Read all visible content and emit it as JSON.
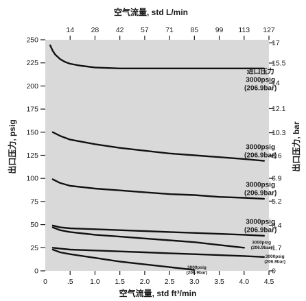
{
  "chart_data": {
    "type": "line",
    "x_axis": {
      "title": "空气流量, std ft³/min",
      "min": 0,
      "max": 4.5,
      "ticks": [
        {
          "v": 0,
          "label": "0"
        },
        {
          "v": 0.5,
          "label": ".5"
        },
        {
          "v": 1.0,
          "label": "1.0"
        },
        {
          "v": 1.5,
          "label": "1.5"
        },
        {
          "v": 2.0,
          "label": "2.0"
        },
        {
          "v": 2.5,
          "label": "2.5"
        },
        {
          "v": 3.0,
          "label": "3.0"
        },
        {
          "v": 3.5,
          "label": "3.5"
        },
        {
          "v": 4.0,
          "label": "4.0"
        },
        {
          "v": 4.5,
          "label": "4.5"
        }
      ]
    },
    "x2_axis": {
      "title": "空气流量, std L/min",
      "ticks": [
        {
          "v": 0.5,
          "label": "14"
        },
        {
          "v": 1.0,
          "label": "28"
        },
        {
          "v": 1.5,
          "label": "42"
        },
        {
          "v": 2.0,
          "label": "57"
        },
        {
          "v": 2.5,
          "label": "71"
        },
        {
          "v": 3.0,
          "label": "85"
        },
        {
          "v": 3.5,
          "label": "99"
        },
        {
          "v": 4.0,
          "label": "113"
        },
        {
          "v": 4.5,
          "label": "127"
        }
      ]
    },
    "y_axis": {
      "title": "出口压力, psig",
      "min": 0,
      "max": 250,
      "ticks": [
        {
          "v": 0,
          "label": "0"
        },
        {
          "v": 25,
          "label": "25"
        },
        {
          "v": 50,
          "label": "50"
        },
        {
          "v": 75,
          "label": "75"
        },
        {
          "v": 100,
          "label": "100"
        },
        {
          "v": 125,
          "label": "125"
        },
        {
          "v": 150,
          "label": "150"
        },
        {
          "v": 175,
          "label": "175"
        },
        {
          "v": 200,
          "label": "200"
        },
        {
          "v": 225,
          "label": "225"
        },
        {
          "v": 250,
          "label": "250"
        }
      ]
    },
    "y2_axis": {
      "title": "出口压力, bar",
      "ticks": [
        {
          "v": 0,
          "label": "0"
        },
        {
          "v": 24.7,
          "label": "1.7"
        },
        {
          "v": 49.3,
          "label": "3.4"
        },
        {
          "v": 75.4,
          "label": "5.2"
        },
        {
          "v": 100.1,
          "label": "6.9"
        },
        {
          "v": 124.7,
          "label": "8.6"
        },
        {
          "v": 149.4,
          "label": "10.3"
        },
        {
          "v": 175.5,
          "label": "12.1"
        },
        {
          "v": 203.1,
          "label": "14"
        },
        {
          "v": 224.8,
          "label": "15.5"
        },
        {
          "v": 246.6,
          "label": "17"
        }
      ]
    },
    "series": [
      {
        "x": [
          0.1,
          0.15,
          0.2,
          0.3,
          0.4,
          0.5,
          0.7,
          1.0,
          1.5,
          2.0,
          3.0,
          4.0,
          4.4
        ],
        "y": [
          244,
          238,
          234,
          229,
          226,
          224,
          222,
          220,
          219,
          219,
          219,
          219,
          219
        ]
      },
      {
        "x": [
          0.15,
          0.3,
          0.5,
          1.0,
          1.5,
          2.0,
          2.5,
          3.0,
          3.5,
          4.0,
          4.4
        ],
        "y": [
          150,
          146,
          142,
          137,
          133,
          130,
          127,
          125,
          123,
          121,
          119
        ]
      },
      {
        "x": [
          0.15,
          0.3,
          0.5,
          1.0,
          1.5,
          2.0,
          2.5,
          3.0,
          3.5,
          4.0,
          4.4
        ],
        "y": [
          99,
          95,
          92,
          89,
          87,
          85,
          83,
          82,
          80,
          79,
          78
        ]
      },
      {
        "x": [
          0.15,
          0.3,
          0.5,
          1.0,
          1.5,
          2.0,
          2.5,
          3.0,
          3.5,
          4.0,
          4.4
        ],
        "y": [
          49,
          47,
          46,
          45,
          44,
          43,
          42,
          41,
          40,
          39,
          38
        ]
      },
      {
        "x": [
          0.15,
          0.3,
          0.5,
          1.0,
          1.5,
          2.0,
          2.5,
          3.0,
          3.5,
          4.0
        ],
        "y": [
          47,
          44,
          42,
          39,
          37,
          35,
          33,
          31,
          28,
          25
        ]
      },
      {
        "x": [
          0.15,
          0.3,
          0.5,
          1.0,
          1.5,
          2.0,
          2.5,
          3.0,
          3.5,
          4.0,
          4.4
        ],
        "y": [
          25,
          24,
          23,
          22,
          21,
          20,
          19,
          18,
          17,
          16,
          15
        ]
      },
      {
        "x": [
          0.15,
          0.3,
          0.5,
          1.0,
          1.5,
          2.0,
          2.5,
          3.0
        ],
        "y": [
          23,
          20,
          18,
          14,
          10,
          7,
          4,
          1
        ]
      }
    ],
    "annotations": [
      {
        "lines": [
          "进口压力",
          "3000psig",
          "(206.9bar)"
        ],
        "x": 4.33,
        "y": 207,
        "size": "head"
      },
      {
        "lines": [
          "3000psig",
          "(206.9bar)"
        ],
        "x": 4.33,
        "y": 130,
        "size": "normal"
      },
      {
        "lines": [
          "3000psig",
          "(206.9bar)"
        ],
        "x": 4.33,
        "y": 89,
        "size": "normal"
      },
      {
        "lines": [
          "3000psig",
          "(206.9bar)"
        ],
        "x": 4.33,
        "y": 49,
        "size": "normal"
      },
      {
        "lines": [
          "3000psig",
          "(206.9bar)"
        ],
        "x": 4.35,
        "y": 29,
        "size": "small"
      },
      {
        "lines": [
          "3000psig",
          "(206.9bar)"
        ],
        "x": 4.62,
        "y": 14,
        "size": "small"
      },
      {
        "lines": [
          "3000psig",
          "(206.9bar)"
        ],
        "x": 3.05,
        "y": 2,
        "size": "small"
      }
    ],
    "grid": false,
    "plot_background": "#d9d9d9",
    "line_color": "#111111"
  }
}
